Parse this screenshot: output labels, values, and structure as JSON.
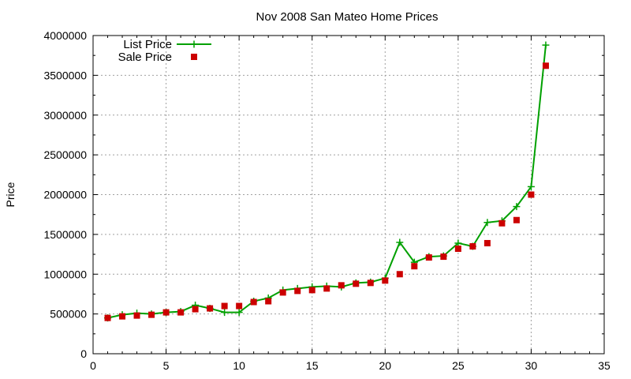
{
  "chart_data": {
    "type": "line",
    "title": "Nov 2008 San Mateo Home Prices",
    "xlabel": "",
    "ylabel": "Price",
    "xlim": [
      0,
      35
    ],
    "ylim": [
      0,
      4000000
    ],
    "x_ticks": [
      0,
      5,
      10,
      15,
      20,
      25,
      30,
      35
    ],
    "y_ticks": [
      0,
      500000,
      1000000,
      1500000,
      2000000,
      2500000,
      3000000,
      3500000,
      4000000
    ],
    "grid": true,
    "legend_position": "top-left",
    "series": [
      {
        "name": "List Price",
        "style": "line-with-plus-markers",
        "color": "#00a000",
        "x": [
          1,
          2,
          3,
          4,
          5,
          6,
          7,
          8,
          9,
          10,
          11,
          12,
          13,
          14,
          15,
          16,
          17,
          18,
          19,
          20,
          21,
          22,
          23,
          24,
          25,
          26,
          27,
          28,
          29,
          30,
          31
        ],
        "y": [
          450000,
          490000,
          510000,
          500000,
          520000,
          530000,
          610000,
          570000,
          520000,
          520000,
          660000,
          700000,
          800000,
          820000,
          840000,
          850000,
          840000,
          890000,
          900000,
          950000,
          1400000,
          1150000,
          1220000,
          1230000,
          1390000,
          1350000,
          1650000,
          1670000,
          1850000,
          2100000,
          3880000
        ]
      },
      {
        "name": "Sale Price",
        "style": "square-markers",
        "color": "#cc0000",
        "x": [
          1,
          2,
          3,
          4,
          5,
          6,
          7,
          8,
          9,
          10,
          11,
          12,
          13,
          14,
          15,
          16,
          17,
          18,
          19,
          20,
          21,
          22,
          23,
          24,
          25,
          26,
          27,
          28,
          29,
          30,
          31
        ],
        "y": [
          450000,
          470000,
          480000,
          490000,
          520000,
          520000,
          560000,
          570000,
          600000,
          600000,
          650000,
          660000,
          770000,
          790000,
          800000,
          820000,
          860000,
          880000,
          890000,
          920000,
          1000000,
          1100000,
          1210000,
          1220000,
          1320000,
          1350000,
          1390000,
          1640000,
          1680000,
          2000000,
          3620000
        ]
      }
    ]
  }
}
